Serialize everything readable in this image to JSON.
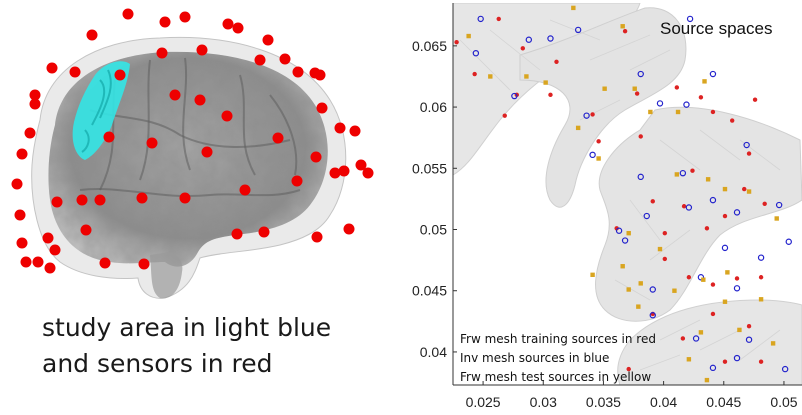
{
  "caption": {
    "line1": "study area in light blue",
    "line2": "and sensors in red"
  },
  "colors": {
    "sensor": "#ee0000",
    "study_area": "#33e6e6",
    "brain": "#8a8a8a",
    "train": "#dd2222",
    "inv": "#2222cc",
    "test": "#d9a520",
    "mesh": "#e6e6e6"
  },
  "sensors_count": 58,
  "chart_data": {
    "type": "scatter",
    "title": "Source spaces",
    "xlim": [
      0.0225,
      0.0515
    ],
    "ylim": [
      0.0373,
      0.0685
    ],
    "x_ticks": [
      0.025,
      0.03,
      0.035,
      0.04,
      0.045,
      0.05
    ],
    "x_tick_labels": [
      "0.025",
      "0.03",
      "0.035",
      "0.04",
      "0.045",
      "0.05"
    ],
    "y_ticks": [
      0.04,
      0.045,
      0.05,
      0.055,
      0.06,
      0.065
    ],
    "y_tick_labels": [
      "0.04",
      "0.045",
      "0.05",
      "0.055",
      "0.06",
      "0.065"
    ],
    "grid": false,
    "legend_position": "bottom-left",
    "legend": [
      "Frw mesh training sources in red",
      "Inv mesh sources in blue",
      "Frw mesh test sources in yellow"
    ],
    "series": [
      {
        "name": "Frw mesh training sources in red",
        "marker": "dot",
        "points": [
          [
            0.0228,
            0.0653
          ],
          [
            0.0243,
            0.0627
          ],
          [
            0.0263,
            0.0672
          ],
          [
            0.0283,
            0.0648
          ],
          [
            0.0311,
            0.0637
          ],
          [
            0.0368,
            0.0662
          ],
          [
            0.0278,
            0.061
          ],
          [
            0.0268,
            0.0593
          ],
          [
            0.0306,
            0.061
          ],
          [
            0.0341,
            0.0594
          ],
          [
            0.0378,
            0.0611
          ],
          [
            0.0411,
            0.0616
          ],
          [
            0.0431,
            0.0608
          ],
          [
            0.0441,
            0.0596
          ],
          [
            0.0381,
            0.0576
          ],
          [
            0.0424,
            0.0548
          ],
          [
            0.0457,
            0.0589
          ],
          [
            0.0471,
            0.0562
          ],
          [
            0.0467,
            0.0533
          ],
          [
            0.0391,
            0.0523
          ],
          [
            0.0401,
            0.0497
          ],
          [
            0.0417,
            0.0519
          ],
          [
            0.0451,
            0.0511
          ],
          [
            0.0484,
            0.0521
          ],
          [
            0.0361,
            0.0501
          ],
          [
            0.0401,
            0.0476
          ],
          [
            0.0421,
            0.0461
          ],
          [
            0.0441,
            0.0455
          ],
          [
            0.0461,
            0.046
          ],
          [
            0.0481,
            0.0461
          ],
          [
            0.0391,
            0.0431
          ],
          [
            0.0441,
            0.0431
          ],
          [
            0.0471,
            0.0421
          ],
          [
            0.0451,
            0.0392
          ],
          [
            0.0481,
            0.0392
          ],
          [
            0.0371,
            0.0386
          ],
          [
            0.0416,
            0.0411
          ],
          [
            0.0346,
            0.0572
          ],
          [
            0.0476,
            0.0606
          ],
          [
            0.0436,
            0.0501
          ]
        ]
      },
      {
        "name": "Inv mesh sources in blue",
        "marker": "circle",
        "points": [
          [
            0.0248,
            0.0672
          ],
          [
            0.0288,
            0.0655
          ],
          [
            0.0329,
            0.0663
          ],
          [
            0.0244,
            0.0644
          ],
          [
            0.0276,
            0.0609
          ],
          [
            0.0336,
            0.0593
          ],
          [
            0.0381,
            0.0627
          ],
          [
            0.0419,
            0.0602
          ],
          [
            0.0441,
            0.0627
          ],
          [
            0.0469,
            0.0569
          ],
          [
            0.0397,
            0.0603
          ],
          [
            0.0381,
            0.0543
          ],
          [
            0.0416,
            0.0546
          ],
          [
            0.0441,
            0.0524
          ],
          [
            0.0461,
            0.0514
          ],
          [
            0.0496,
            0.052
          ],
          [
            0.0451,
            0.0485
          ],
          [
            0.0481,
            0.0477
          ],
          [
            0.0504,
            0.049
          ],
          [
            0.0368,
            0.0491
          ],
          [
            0.0391,
            0.0451
          ],
          [
            0.0431,
            0.0461
          ],
          [
            0.0461,
            0.0452
          ],
          [
            0.0391,
            0.043
          ],
          [
            0.0427,
            0.0411
          ],
          [
            0.0471,
            0.041
          ],
          [
            0.0461,
            0.0395
          ],
          [
            0.0441,
            0.0387
          ],
          [
            0.0501,
            0.0386
          ],
          [
            0.0363,
            0.0499
          ],
          [
            0.0421,
            0.0518
          ],
          [
            0.0386,
            0.0511
          ],
          [
            0.0341,
            0.0561
          ],
          [
            0.0306,
            0.0656
          ],
          [
            0.0422,
            0.0672
          ]
        ]
      },
      {
        "name": "Frw mesh test sources in yellow",
        "marker": "square",
        "points": [
          [
            0.0238,
            0.0658
          ],
          [
            0.0256,
            0.0625
          ],
          [
            0.0286,
            0.0625
          ],
          [
            0.0302,
            0.062
          ],
          [
            0.0325,
            0.0681
          ],
          [
            0.0366,
            0.0666
          ],
          [
            0.0351,
            0.0615
          ],
          [
            0.0376,
            0.0615
          ],
          [
            0.0412,
            0.0596
          ],
          [
            0.0329,
            0.0583
          ],
          [
            0.0346,
            0.0558
          ],
          [
            0.0389,
            0.0596
          ],
          [
            0.0434,
            0.0621
          ],
          [
            0.0411,
            0.0545
          ],
          [
            0.0437,
            0.0541
          ],
          [
            0.0451,
            0.0533
          ],
          [
            0.0471,
            0.0531
          ],
          [
            0.0494,
            0.0509
          ],
          [
            0.0371,
            0.0497
          ],
          [
            0.0397,
            0.0484
          ],
          [
            0.0366,
            0.047
          ],
          [
            0.0381,
            0.0456
          ],
          [
            0.0409,
            0.045
          ],
          [
            0.0433,
            0.0459
          ],
          [
            0.0453,
            0.0465
          ],
          [
            0.0379,
            0.0437
          ],
          [
            0.0431,
            0.0416
          ],
          [
            0.0463,
            0.0418
          ],
          [
            0.0491,
            0.0407
          ],
          [
            0.0436,
            0.0377
          ],
          [
            0.0371,
            0.0451
          ],
          [
            0.0341,
            0.0463
          ],
          [
            0.0451,
            0.0441
          ],
          [
            0.0481,
            0.0443
          ],
          [
            0.0421,
            0.0394
          ]
        ]
      }
    ]
  }
}
